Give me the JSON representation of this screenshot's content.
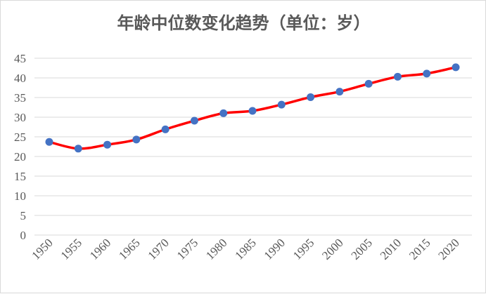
{
  "chart_data": {
    "type": "line",
    "title": "年龄中位数变化趋势（单位：岁）",
    "xlabel": "",
    "ylabel": "",
    "x": [
      "1950",
      "1955",
      "1960",
      "1965",
      "1970",
      "1975",
      "1980",
      "1985",
      "1990",
      "1995",
      "2000",
      "2005",
      "2010",
      "2015",
      "2020"
    ],
    "series": [
      {
        "values": [
          23.7,
          22.0,
          23.0,
          24.3,
          26.9,
          29.1,
          31.0,
          31.6,
          33.2,
          35.1,
          36.5,
          38.5,
          40.3,
          41.1,
          42.7
        ],
        "line_color": "#ff0000",
        "marker_color": "#4472c4"
      }
    ],
    "ylim": [
      0,
      45
    ],
    "y_ticks": [
      "0",
      "5",
      "10",
      "15",
      "20",
      "25",
      "30",
      "35",
      "40",
      "45"
    ],
    "grid": true,
    "gridline_color": "#d9d9d9",
    "legend": "none"
  }
}
